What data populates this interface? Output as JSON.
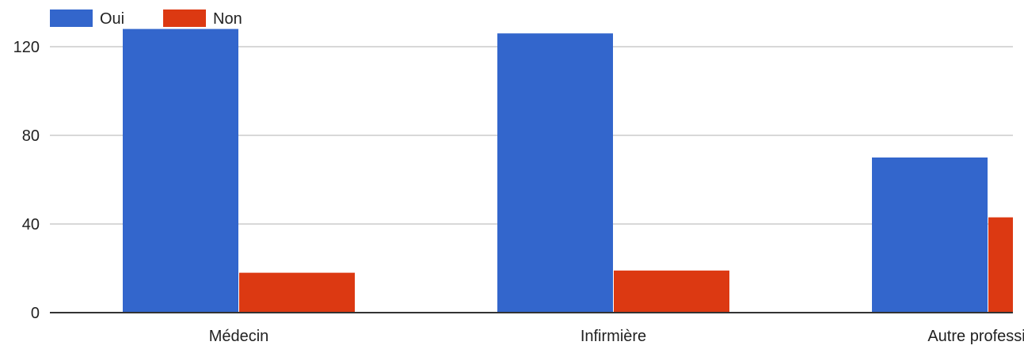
{
  "chart_data": {
    "type": "bar",
    "categories": [
      "Médecin",
      "Infirmière",
      "Autre professionr"
    ],
    "series": [
      {
        "name": "Oui",
        "color": "#3366cc",
        "values": [
          128,
          126,
          70
        ]
      },
      {
        "name": "Non",
        "color": "#dc3912",
        "values": [
          18,
          19,
          43
        ]
      }
    ],
    "ylim": [
      0,
      120
    ],
    "yticks": [
      0,
      40,
      80,
      120
    ],
    "grid": true,
    "legend": "top-left",
    "title": "",
    "xlabel": "",
    "ylabel": ""
  }
}
